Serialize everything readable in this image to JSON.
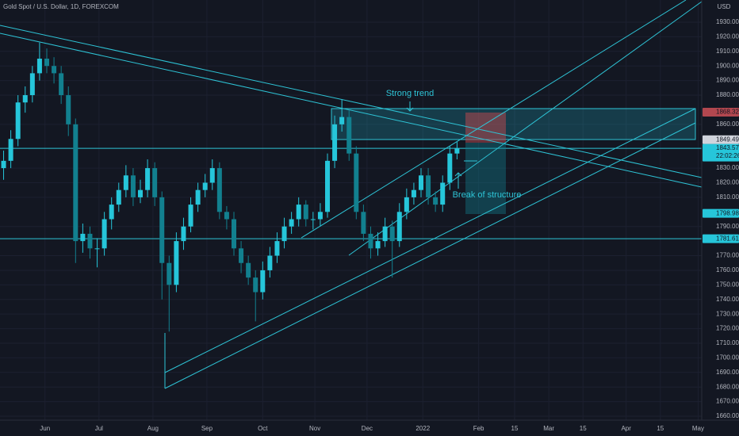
{
  "chart_data": {
    "type": "candlestick",
    "title": "Gold Spot / U.S. Dollar, 1D, FOREXCOM",
    "currency": "USD",
    "up_color": "#26c6da",
    "down_color": "#12808f",
    "xlim": [
      0,
      390
    ],
    "ylim": [
      1657.3,
      1945.2
    ],
    "xticks": [
      {
        "value": 25,
        "label": "Jun"
      },
      {
        "value": 55,
        "label": "Jul"
      },
      {
        "value": 85,
        "label": "Aug"
      },
      {
        "value": 115,
        "label": "Sep"
      },
      {
        "value": 146,
        "label": "Oct"
      },
      {
        "value": 175,
        "label": "Nov"
      },
      {
        "value": 204,
        "label": "Dec"
      },
      {
        "value": 235,
        "label": "2022"
      },
      {
        "value": 266,
        "label": "Feb"
      },
      {
        "value": 286,
        "label": "15"
      },
      {
        "value": 305,
        "label": "Mar"
      },
      {
        "value": 324,
        "label": "15"
      },
      {
        "value": 348,
        "label": "Apr"
      },
      {
        "value": 367,
        "label": "15"
      },
      {
        "value": 388,
        "label": "May"
      }
    ],
    "yticks": [
      {
        "value": 1930,
        "label": "1930.00"
      },
      {
        "value": 1920,
        "label": "1920.00"
      },
      {
        "value": 1910,
        "label": "1910.00"
      },
      {
        "value": 1900,
        "label": "1900.00"
      },
      {
        "value": 1890,
        "label": "1890.00"
      },
      {
        "value": 1880,
        "label": "1880.00"
      },
      {
        "value": 1860,
        "label": "1860.00"
      },
      {
        "value": 1830,
        "label": "1830.00"
      },
      {
        "value": 1820,
        "label": "1820.00"
      },
      {
        "value": 1810,
        "label": "1810.00"
      },
      {
        "value": 1790,
        "label": "1790.00"
      },
      {
        "value": 1770,
        "label": "1770.00"
      },
      {
        "value": 1760,
        "label": "1760.00"
      },
      {
        "value": 1750,
        "label": "1750.00"
      },
      {
        "value": 1740,
        "label": "1740.00"
      },
      {
        "value": 1730,
        "label": "1730.00"
      },
      {
        "value": 1720,
        "label": "1720.00"
      },
      {
        "value": 1710,
        "label": "1710.00"
      },
      {
        "value": 1700,
        "label": "1700.00"
      },
      {
        "value": 1690,
        "label": "1690.00"
      },
      {
        "value": 1680,
        "label": "1680.00"
      },
      {
        "value": 1670,
        "label": "1670.00"
      },
      {
        "value": 1660,
        "label": "1660.00"
      }
    ],
    "candles": [
      [
        2,
        1830,
        1842,
        1822,
        1835
      ],
      [
        6,
        1835,
        1856,
        1830,
        1850
      ],
      [
        10,
        1850,
        1880,
        1845,
        1875
      ],
      [
        14,
        1875,
        1886,
        1868,
        1880
      ],
      [
        18,
        1880,
        1900,
        1875,
        1895
      ],
      [
        22,
        1895,
        1916,
        1890,
        1905
      ],
      [
        26,
        1905,
        1912,
        1895,
        1900
      ],
      [
        30,
        1900,
        1906,
        1888,
        1895
      ],
      [
        34,
        1895,
        1900,
        1874,
        1880
      ],
      [
        38,
        1880,
        1886,
        1852,
        1860
      ],
      [
        42,
        1860,
        1864,
        1765,
        1780
      ],
      [
        46,
        1780,
        1792,
        1772,
        1785
      ],
      [
        50,
        1785,
        1790,
        1768,
        1775
      ],
      [
        54,
        1775,
        1782,
        1762,
        1775
      ],
      [
        58,
        1775,
        1800,
        1770,
        1795
      ],
      [
        62,
        1795,
        1810,
        1788,
        1805
      ],
      [
        66,
        1805,
        1820,
        1800,
        1815
      ],
      [
        70,
        1815,
        1832,
        1810,
        1825
      ],
      [
        74,
        1825,
        1830,
        1804,
        1810
      ],
      [
        78,
        1810,
        1822,
        1806,
        1815
      ],
      [
        82,
        1815,
        1836,
        1810,
        1830
      ],
      [
        86,
        1830,
        1834,
        1804,
        1810
      ],
      [
        90,
        1810,
        1814,
        1740,
        1765
      ],
      [
        94,
        1765,
        1770,
        1718,
        1750
      ],
      [
        98,
        1750,
        1786,
        1745,
        1780
      ],
      [
        102,
        1780,
        1796,
        1774,
        1790
      ],
      [
        106,
        1790,
        1810,
        1786,
        1805
      ],
      [
        110,
        1805,
        1820,
        1800,
        1815
      ],
      [
        114,
        1815,
        1826,
        1810,
        1820
      ],
      [
        118,
        1820,
        1836,
        1815,
        1830
      ],
      [
        122,
        1830,
        1834,
        1795,
        1800
      ],
      [
        126,
        1800,
        1804,
        1788,
        1795
      ],
      [
        130,
        1795,
        1800,
        1770,
        1775
      ],
      [
        134,
        1775,
        1780,
        1758,
        1765
      ],
      [
        138,
        1765,
        1770,
        1750,
        1755
      ],
      [
        142,
        1755,
        1760,
        1725,
        1745
      ],
      [
        146,
        1745,
        1766,
        1740,
        1760
      ],
      [
        150,
        1760,
        1776,
        1755,
        1770
      ],
      [
        154,
        1770,
        1786,
        1765,
        1780
      ],
      [
        158,
        1780,
        1796,
        1775,
        1790
      ],
      [
        162,
        1790,
        1800,
        1785,
        1795
      ],
      [
        166,
        1795,
        1810,
        1790,
        1805
      ],
      [
        170,
        1805,
        1808,
        1790,
        1795
      ],
      [
        174,
        1795,
        1800,
        1788,
        1795
      ],
      [
        178,
        1795,
        1806,
        1790,
        1800
      ],
      [
        182,
        1800,
        1840,
        1796,
        1835
      ],
      [
        186,
        1835,
        1866,
        1830,
        1860
      ],
      [
        190,
        1860,
        1877,
        1855,
        1865
      ],
      [
        194,
        1865,
        1870,
        1835,
        1840
      ],
      [
        198,
        1840,
        1845,
        1795,
        1800
      ],
      [
        202,
        1800,
        1805,
        1780,
        1785
      ],
      [
        206,
        1785,
        1790,
        1768,
        1775
      ],
      [
        210,
        1775,
        1786,
        1770,
        1780
      ],
      [
        214,
        1780,
        1796,
        1776,
        1790
      ],
      [
        218,
        1790,
        1794,
        1755,
        1780
      ],
      [
        222,
        1780,
        1806,
        1776,
        1800
      ],
      [
        226,
        1800,
        1816,
        1795,
        1810
      ],
      [
        230,
        1810,
        1820,
        1805,
        1815
      ],
      [
        234,
        1815,
        1830,
        1810,
        1825
      ],
      [
        238,
        1825,
        1830,
        1805,
        1810
      ],
      [
        242,
        1810,
        1814,
        1800,
        1805
      ],
      [
        246,
        1805,
        1825,
        1800,
        1820
      ],
      [
        250,
        1820,
        1845,
        1815,
        1840
      ],
      [
        254,
        1840,
        1848,
        1836,
        1843.57
      ]
    ],
    "price_labels": [
      {
        "value": 1868.32,
        "color": "#b2474f"
      },
      {
        "value": 1849.49,
        "color": "#d1d4dc"
      },
      {
        "value": 1843.57,
        "color": "#26c6da",
        "countdown": "22:02:26"
      },
      {
        "value": 1798.98,
        "color": "#26c6da"
      },
      {
        "value": 1781.61,
        "color": "#26c6da"
      }
    ],
    "annotations": [
      "Strong trend",
      "Break of structure"
    ]
  }
}
